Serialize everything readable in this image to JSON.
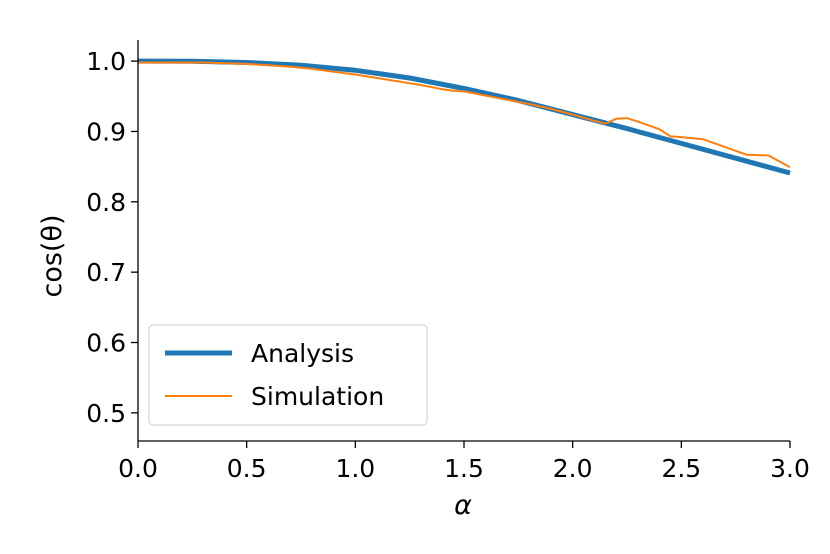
{
  "chart_data": {
    "type": "line",
    "xlabel": "α",
    "ylabel": "cos(θ)",
    "xlim": [
      0.0,
      3.0
    ],
    "ylim": [
      0.46,
      1.03
    ],
    "xticks": [
      "0.0",
      "0.5",
      "1.0",
      "1.5",
      "2.0",
      "2.5",
      "3.0"
    ],
    "yticks": [
      "0.5",
      "0.6",
      "0.7",
      "0.8",
      "0.9",
      "1.0"
    ],
    "grid": false,
    "legend_position": "lower-left",
    "series": [
      {
        "name": "Analysis",
        "color": "#1f77b4",
        "x": [
          0.0,
          0.25,
          0.5,
          0.75,
          1.0,
          1.25,
          1.5,
          1.75,
          2.0,
          2.25,
          2.5,
          2.75,
          3.0
        ],
        "y": [
          1.0,
          0.9998,
          0.998,
          0.994,
          0.987,
          0.976,
          0.961,
          0.944,
          0.924,
          0.904,
          0.883,
          0.862,
          0.841
        ]
      },
      {
        "name": "Simulation",
        "color": "#ff7f0e",
        "x": [
          0.0,
          0.1,
          0.2,
          0.3,
          0.4,
          0.5,
          0.6,
          0.7,
          0.8,
          0.9,
          1.0,
          1.1,
          1.2,
          1.3,
          1.4,
          1.45,
          1.5,
          1.6,
          1.7,
          1.8,
          1.9,
          2.0,
          2.1,
          2.15,
          2.2,
          2.25,
          2.3,
          2.4,
          2.45,
          2.5,
          2.6,
          2.7,
          2.8,
          2.9,
          3.0
        ],
        "y": [
          0.998,
          0.998,
          0.998,
          0.998,
          0.997,
          0.996,
          0.994,
          0.992,
          0.989,
          0.985,
          0.981,
          0.976,
          0.971,
          0.966,
          0.96,
          0.958,
          0.957,
          0.951,
          0.945,
          0.939,
          0.932,
          0.924,
          0.915,
          0.911,
          0.918,
          0.919,
          0.914,
          0.903,
          0.893,
          0.892,
          0.889,
          0.878,
          0.867,
          0.866,
          0.849
        ]
      }
    ]
  }
}
